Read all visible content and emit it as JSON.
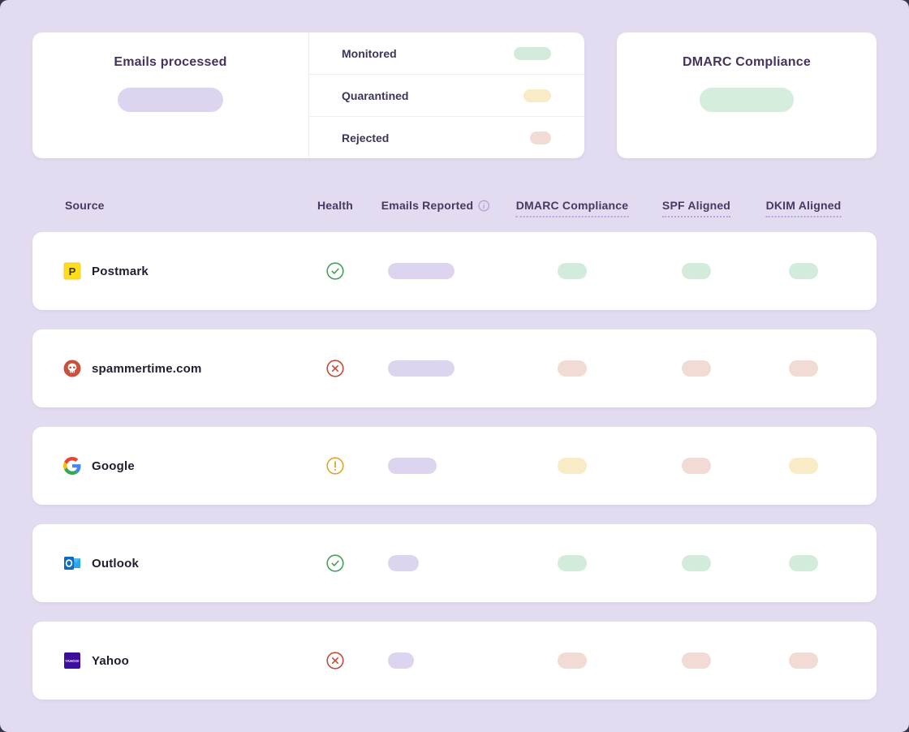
{
  "summary_cards": {
    "emails_processed": {
      "title": "Emails processed",
      "value_placeholder": true
    },
    "breakdown": {
      "items": [
        {
          "label": "Monitored",
          "status": "pass",
          "pill_width": 46
        },
        {
          "label": "Quarantined",
          "status": "warn",
          "pill_width": 34
        },
        {
          "label": "Rejected",
          "status": "fail",
          "pill_width": 26
        }
      ]
    },
    "dmarc_compliance": {
      "title": "DMARC Compliance",
      "value_placeholder": true,
      "status": "pass"
    }
  },
  "table": {
    "columns": {
      "source": "Source",
      "health": "Health",
      "emails_reported": "Emails Reported",
      "emails_reported_info_icon": "info-icon",
      "dmarc_compliance": "DMARC Compliance",
      "spf_aligned": "SPF Aligned",
      "dkim_aligned": "DKIM Aligned"
    },
    "rows": [
      {
        "source": "Postmark",
        "icon": "postmark-logo",
        "health": "pass",
        "emails_reported_bar_width": 82,
        "dmarc_compliance": "pass",
        "spf_aligned": "pass",
        "dkim_aligned": "pass"
      },
      {
        "source": "spammertime.com",
        "icon": "spammer-skull-logo",
        "health": "fail",
        "emails_reported_bar_width": 82,
        "dmarc_compliance": "fail",
        "spf_aligned": "fail",
        "dkim_aligned": "fail"
      },
      {
        "source": "Google",
        "icon": "google-logo",
        "health": "warn",
        "emails_reported_bar_width": 60,
        "dmarc_compliance": "warn",
        "spf_aligned": "fail",
        "dkim_aligned": "warn"
      },
      {
        "source": "Outlook",
        "icon": "outlook-logo",
        "health": "pass",
        "emails_reported_bar_width": 38,
        "dmarc_compliance": "pass",
        "spf_aligned": "pass",
        "dkim_aligned": "pass"
      },
      {
        "source": "Yahoo",
        "icon": "yahoo-logo",
        "health": "fail",
        "emails_reported_bar_width": 32,
        "dmarc_compliance": "fail",
        "spf_aligned": "fail",
        "dkim_aligned": "fail"
      }
    ]
  },
  "colors": {
    "page_background": "#E3DCF1",
    "card_background": "#FFFFFF",
    "pill_purple": "#DDD5F0",
    "pill_green": "#D3EBDA",
    "pill_yellow": "#F8EBC6",
    "pill_red": "#F2DBD4",
    "health_pass": "#43A25A",
    "health_fail": "#C74A37",
    "health_warn": "#DFA42B",
    "heading_text": "#46325E"
  }
}
